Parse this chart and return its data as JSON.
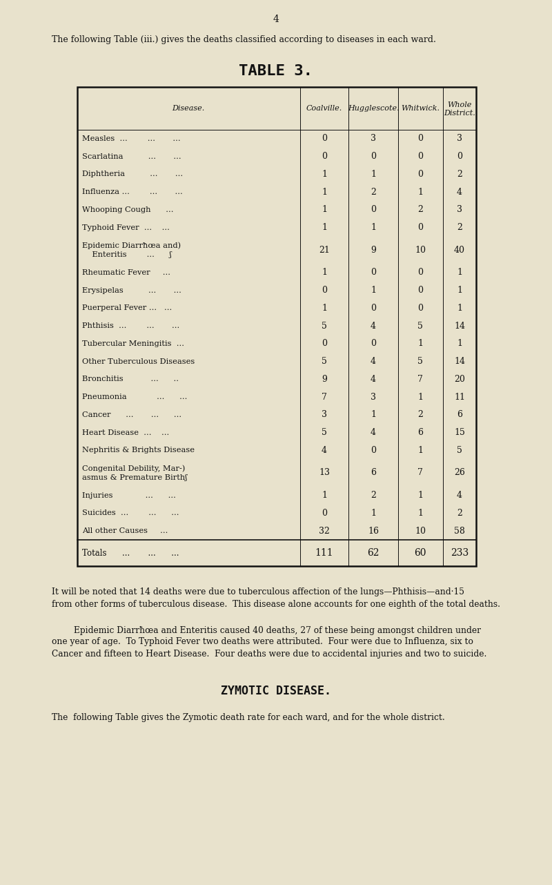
{
  "page_number": "4",
  "intro_text": "The following Table (iii.) gives the deaths classified according to diseases in each ward.",
  "table_title": "TABLE 3.",
  "col_headers_line1": [
    "Disease.",
    "Coalville.",
    "Hugglescote.",
    "Whitwick.",
    "Whole"
  ],
  "col_headers_line2": [
    "",
    "",
    "",
    "",
    "District."
  ],
  "rows": [
    {
      "disease": "Measles  ...        ...       ...",
      "coalville": "0",
      "hugglescote": "3",
      "whitwick": "0",
      "whole": "3",
      "multiline": false
    },
    {
      "disease": "Scarlatina          ...       ...",
      "coalville": "0",
      "hugglescote": "0",
      "whitwick": "0",
      "whole": "0",
      "multiline": false
    },
    {
      "disease": "Diphtheria          ...       ...",
      "coalville": "1",
      "hugglescote": "1",
      "whitwick": "0",
      "whole": "2",
      "multiline": false
    },
    {
      "disease": "Influenza ...        ...       ...",
      "coalville": "1",
      "hugglescote": "2",
      "whitwick": "1",
      "whole": "4",
      "multiline": false
    },
    {
      "disease": "Whooping Cough      ...",
      "coalville": "1",
      "hugglescote": "0",
      "whitwick": "2",
      "whole": "3",
      "multiline": false
    },
    {
      "disease": "Typhoid Fever  ...    ...",
      "coalville": "1",
      "hugglescote": "1",
      "whitwick": "0",
      "whole": "2",
      "multiline": false
    },
    {
      "disease1": "Epidemic Diarrħœa and)",
      "disease2": "    Enteritis        ...      ʃ",
      "coalville": "21",
      "hugglescote": "9",
      "whitwick": "10",
      "whole": "40",
      "multiline": true
    },
    {
      "disease": "Rheumatic Fever     ...",
      "coalville": "1",
      "hugglescote": "0",
      "whitwick": "0",
      "whole": "1",
      "multiline": false
    },
    {
      "disease": "Erysipelas          ...       ...",
      "coalville": "0",
      "hugglescote": "1",
      "whitwick": "0",
      "whole": "1",
      "multiline": false
    },
    {
      "disease": "Puerperal Fever ...   ...",
      "coalville": "1",
      "hugglescote": "0",
      "whitwick": "0",
      "whole": "1",
      "multiline": false
    },
    {
      "disease": "Phthisis  ...        ...       ...",
      "coalville": "5",
      "hugglescote": "4",
      "whitwick": "5",
      "whole": "14",
      "multiline": false
    },
    {
      "disease": "Tubercular Meningitis  ...",
      "coalville": "0",
      "hugglescote": "0",
      "whitwick": "1",
      "whole": "1",
      "multiline": false
    },
    {
      "disease": "Other Tuberculous Diseases",
      "coalville": "5",
      "hugglescote": "4",
      "whitwick": "5",
      "whole": "14",
      "multiline": false
    },
    {
      "disease": "Bronchitis           ...      ..",
      "coalville": "9",
      "hugglescote": "4",
      "whitwick": "7",
      "whole": "20",
      "multiline": false
    },
    {
      "disease": "Pneumonia            ...      ...",
      "coalville": "7",
      "hugglescote": "3",
      "whitwick": "1",
      "whole": "11",
      "multiline": false
    },
    {
      "disease": "Cancer      ...       ...      ...",
      "coalville": "3",
      "hugglescote": "1",
      "whitwick": "2",
      "whole": "6",
      "multiline": false
    },
    {
      "disease": "Heart Disease  ...    ...",
      "coalville": "5",
      "hugglescote": "4",
      "whitwick": "6",
      "whole": "15",
      "multiline": false
    },
    {
      "disease": "Nephritis & Brights Disease",
      "coalville": "4",
      "hugglescote": "0",
      "whitwick": "1",
      "whole": "5",
      "multiline": false
    },
    {
      "disease1": "Congenital Debility, Mar-)",
      "disease2": "asmus & Premature Birthʃ",
      "coalville": "13",
      "hugglescote": "6",
      "whitwick": "7",
      "whole": "26",
      "multiline": true
    },
    {
      "disease": "Injuries             ...      ...",
      "coalville": "1",
      "hugglescote": "2",
      "whitwick": "1",
      "whole": "4",
      "multiline": false
    },
    {
      "disease": "Suicides  ...        ...      ...",
      "coalville": "0",
      "hugglescote": "1",
      "whitwick": "1",
      "whole": "2",
      "multiline": false
    },
    {
      "disease": "All other Causes     ...",
      "coalville": "32",
      "hugglescote": "16",
      "whitwick": "10",
      "whole": "58",
      "multiline": false
    }
  ],
  "totals": {
    "disease": "Totals      ...       ...      ...",
    "coalville": "111",
    "hugglescote": "62",
    "whitwick": "60",
    "whole": "233"
  },
  "para1_line1": "It will be noted that 14 deaths were due to tuberculous affection of the lungs—Phthisis—and·15",
  "para1_line2": "from other forms of tuberculous disease.  This disease alone accounts for one eighth of the total deaths.",
  "para2_line1": "Epidemic Diarrħœa and Enteritis caused 40 deaths, 27 of these being amongst children under",
  "para2_line2": "one year of age.  To Typhoid Fever two deaths were attributed.  Four were due to Influenza, six to",
  "para2_line3": "Cancer and fifteen to Heart Disease.  Four deaths were due to accidental injuries and two to suicide.",
  "section_heading": "ZYMOTIC DISEASE.",
  "section_text": "The  following Table gives the Zymotic death rate for each ward, and for the whole district.",
  "bg_color": "#e8e2cc",
  "text_color": "#111111"
}
